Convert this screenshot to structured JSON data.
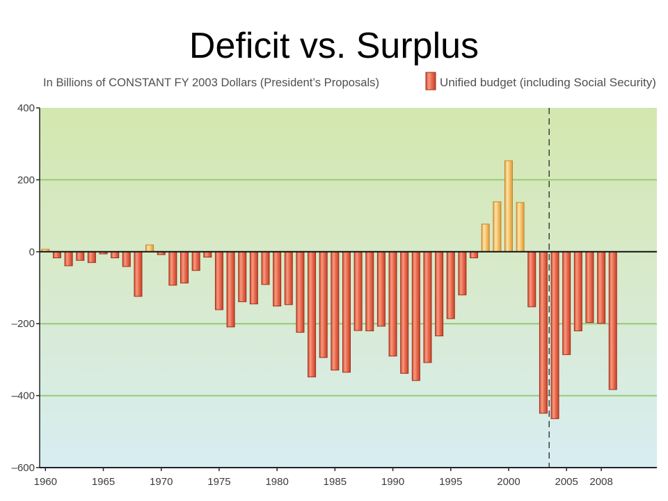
{
  "chart_data": {
    "type": "bar",
    "title": "Deficit vs. Surplus",
    "subtitle": "In Billions of CONSTANT FY 2003 Dollars (President’s Proposals)",
    "legend_position": "top-right",
    "grid": true,
    "x": [
      1960,
      1961,
      1962,
      1963,
      1964,
      1965,
      1966,
      1967,
      1968,
      1969,
      1970,
      1971,
      1972,
      1973,
      1974,
      1975,
      1976,
      1977,
      1978,
      1979,
      1980,
      1981,
      1982,
      1983,
      1984,
      1985,
      1986,
      1987,
      1988,
      1989,
      1990,
      1991,
      1992,
      1993,
      1994,
      1995,
      1996,
      1997,
      1998,
      1999,
      2000,
      2001,
      2002,
      2003,
      2004,
      2005,
      2006,
      2007,
      2008,
      2009
    ],
    "series": [
      {
        "name": "Unified budget (including Social Security)",
        "values": [
          7,
          -17,
          -39,
          -24,
          -30,
          -6,
          -17,
          -41,
          -124,
          19,
          -8,
          -93,
          -87,
          -52,
          -15,
          -161,
          -209,
          -139,
          -145,
          -91,
          -151,
          -147,
          -224,
          -348,
          -294,
          -329,
          -335,
          -219,
          -220,
          -207,
          -290,
          -338,
          -358,
          -308,
          -234,
          -186,
          -120,
          -17,
          77,
          139,
          253,
          137,
          -153,
          -449,
          -464,
          -286,
          -220,
          -197,
          -199,
          -383
        ]
      }
    ],
    "x_tick_labels": [
      "1960",
      "1965",
      "1970",
      "1975",
      "1980",
      "1985",
      "1990",
      "1995",
      "2000",
      "2005",
      "2008"
    ],
    "y_tick_labels": [
      "400",
      "200",
      "0",
      "–200",
      "–400",
      "–600"
    ],
    "xlim": [
      1959.5,
      2012.8
    ],
    "ylim": [
      -600,
      400
    ],
    "dashed_line_x": 2003.5,
    "colors": {
      "deficit": "#ea6c50",
      "surplus": "#f7c46c",
      "gridline": "#95ca78",
      "plot_top": "#d3e7af",
      "plot_bottom": "#d8edf3"
    }
  }
}
